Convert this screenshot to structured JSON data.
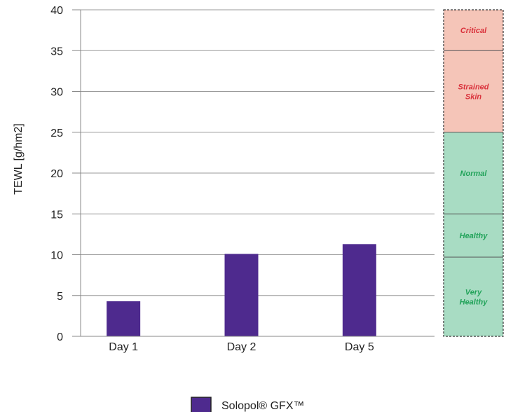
{
  "chart_data": {
    "type": "bar",
    "ylabel": "TEWL [g/hm2]",
    "xlabel": "",
    "ylim": [
      0,
      40
    ],
    "yticks": [
      0,
      5,
      10,
      15,
      20,
      25,
      30,
      35,
      40
    ],
    "categories": [
      "Day 1",
      "Day 2",
      "Day 5"
    ],
    "series": [
      {
        "name": "Solopol® GFX™",
        "values": [
          4.3,
          10.1,
          11.3
        ],
        "color": "#4e2a8e"
      }
    ],
    "grid": true,
    "legend": "bottom-center",
    "zones": [
      {
        "label": [
          "Very",
          "Healthy"
        ],
        "from": 0,
        "to": 9.7,
        "color": "#a8dcc3",
        "text_color": "#22a35a"
      },
      {
        "label": [
          "Healthy"
        ],
        "from": 9.7,
        "to": 15,
        "color": "#a8dcc3",
        "text_color": "#22a35a"
      },
      {
        "label": [
          "Normal"
        ],
        "from": 15,
        "to": 25,
        "color": "#a8dcc3",
        "text_color": "#22a35a"
      },
      {
        "label": [
          "Strained",
          "Skin"
        ],
        "from": 25,
        "to": 35,
        "color": "#f5c5b8",
        "text_color": "#d9303a"
      },
      {
        "label": [
          "Critical"
        ],
        "from": 35,
        "to": 40,
        "color": "#f5c5b8",
        "text_color": "#d9303a"
      }
    ],
    "gridline_color": "#999999",
    "axis_color": "#888888"
  }
}
